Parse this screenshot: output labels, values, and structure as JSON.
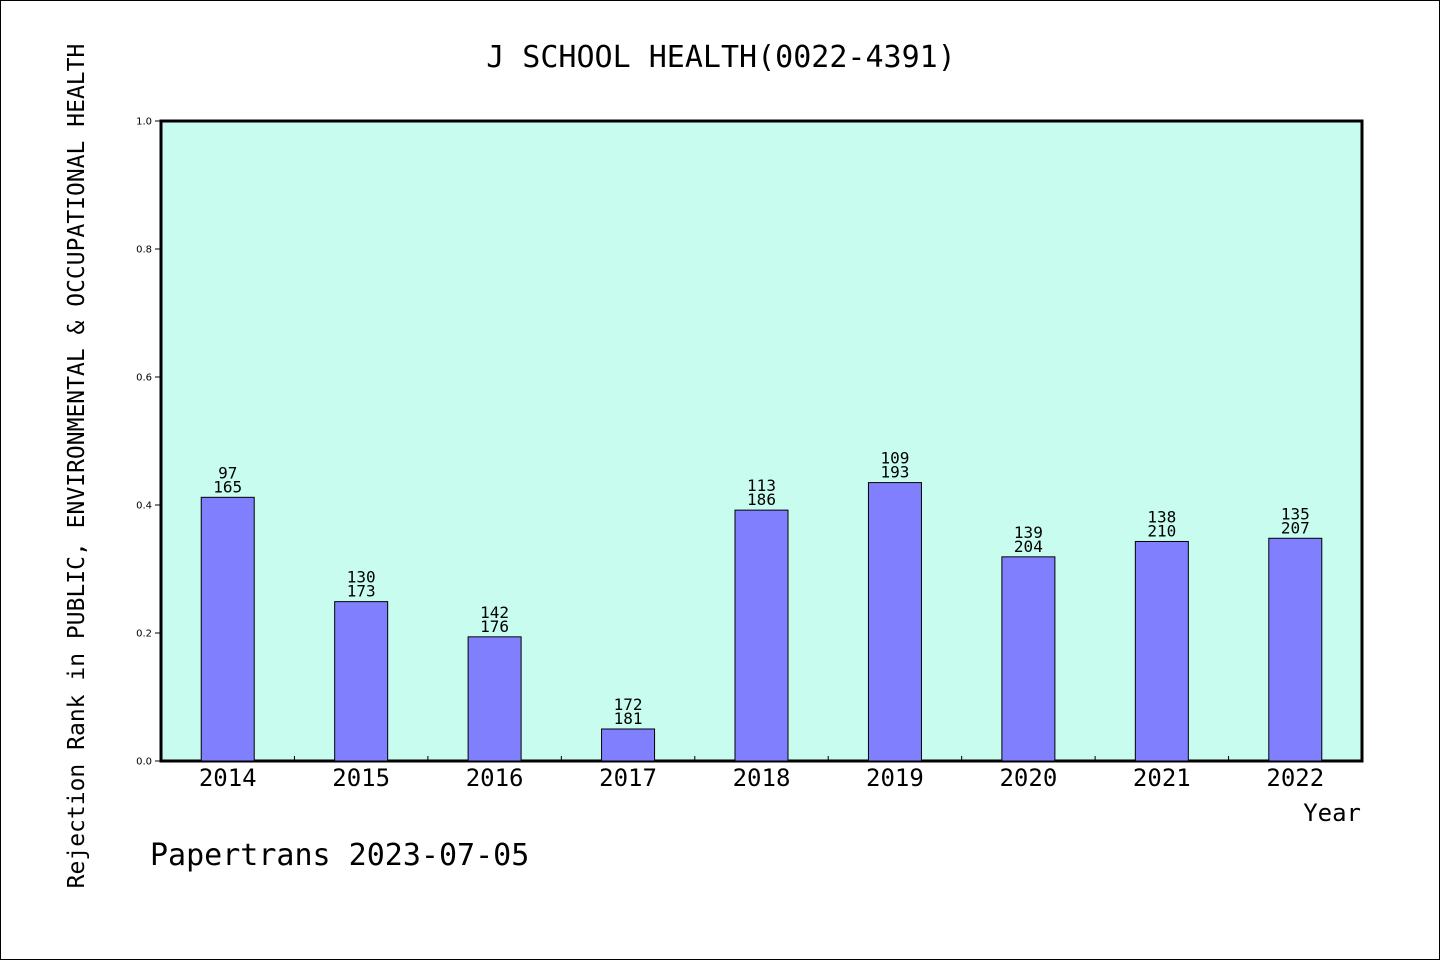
{
  "chart_data": {
    "type": "bar",
    "title": "J SCHOOL HEALTH(0022-4391)",
    "xlabel": "Year",
    "ylabel": "Rejection Rank in PUBLIC, ENVIRONMENTAL & OCCUPATIONAL HEALTH",
    "ylim": [
      0,
      1
    ],
    "yticks": [
      "0.0",
      "0.2",
      "0.4",
      "0.6",
      "0.8",
      "1.0"
    ],
    "categories": [
      "2014",
      "2015",
      "2016",
      "2017",
      "2018",
      "2019",
      "2020",
      "2021",
      "2022"
    ],
    "values": [
      0.412,
      0.249,
      0.194,
      0.05,
      0.392,
      0.435,
      0.319,
      0.343,
      0.348
    ],
    "label_top": [
      "97",
      "130",
      "142",
      "172",
      "113",
      "109",
      "139",
      "138",
      "135"
    ],
    "label_bottom": [
      "165",
      "173",
      "176",
      "181",
      "186",
      "193",
      "204",
      "210",
      "207"
    ],
    "grid": false,
    "colors": {
      "plot_background": "#c8fcee",
      "bar_fill": "#8080ff",
      "bar_stroke": "#000000"
    }
  },
  "footer": "Papertrans 2023-07-05"
}
